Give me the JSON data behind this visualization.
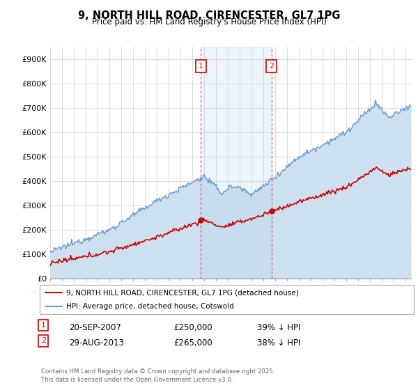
{
  "title": "9, NORTH HILL ROAD, CIRENCESTER, GL7 1PG",
  "subtitle": "Price paid vs. HM Land Registry's House Price Index (HPI)",
  "ylabel_ticks": [
    "£0",
    "£100K",
    "£200K",
    "£300K",
    "£400K",
    "£500K",
    "£600K",
    "£700K",
    "£800K",
    "£900K"
  ],
  "ytick_values": [
    0,
    100000,
    200000,
    300000,
    400000,
    500000,
    600000,
    700000,
    800000,
    900000
  ],
  "ylim": [
    0,
    950000
  ],
  "xlim_start": 1995,
  "xlim_end": 2025.5,
  "legend_line1": "9, NORTH HILL ROAD, CIRENCESTER, GL7 1PG (detached house)",
  "legend_line2": "HPI: Average price, detached house, Cotswold",
  "line_color_red": "#cc0000",
  "line_color_blue": "#6699cc",
  "fill_color_blue": "#cce0f0",
  "marker1_date": 2007.72,
  "marker1_price": 250000,
  "marker2_date": 2013.66,
  "marker2_price": 265000,
  "footer": "Contains HM Land Registry data © Crown copyright and database right 2025.\nThis data is licensed under the Open Government Licence v3.0.",
  "background_color": "#ffffff",
  "grid_color": "#cccccc",
  "fig_width": 6.0,
  "fig_height": 5.6,
  "dpi": 100
}
